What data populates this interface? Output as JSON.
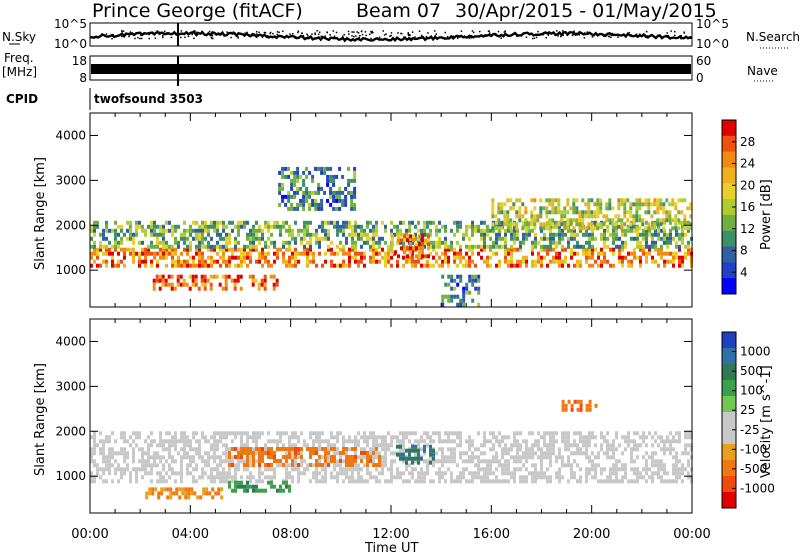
{
  "header": {
    "station": "Prince George (fitACF)",
    "beam": "Beam 07",
    "dates": "30/Apr/2015 - 01/May/2015"
  },
  "strips": {
    "nsky_label": "N.Sky",
    "nsearch_label": "N.Search",
    "nsky_ticks": [
      "10^5",
      "10^0"
    ],
    "nsearch_ticks": [
      "10^5",
      "10^0"
    ],
    "freq_label_1": "Freq.",
    "freq_label_2": "[MHz]",
    "freq_ticks": [
      "18",
      "8"
    ],
    "nave_label": "Nave",
    "nave_ticks": [
      "60",
      "0"
    ],
    "cpid_label": "CPID",
    "cpid_value": "twofsound 3503"
  },
  "colorbars": {
    "power": {
      "label": "Power [dB]",
      "ticks": [
        "28",
        "24",
        "20",
        "16",
        "12",
        "8",
        "4"
      ],
      "colors": [
        "#e00000",
        "#f05010",
        "#f08a10",
        "#f0b020",
        "#e8d028",
        "#b0cc30",
        "#70b040",
        "#3c9068",
        "#3060a0",
        "#2040c8",
        "#0000ff"
      ]
    },
    "velocity": {
      "label": "Velocity [m s^-1]",
      "ticks": [
        "1000",
        "500",
        "100",
        "25",
        "-25",
        "-100",
        "-500",
        "-1000"
      ],
      "colors": [
        "#2040c0",
        "#3070a8",
        "#2f7a55",
        "#3aa04a",
        "#70c850",
        "#c8c8c8",
        "#c8c8c8",
        "#e8a020",
        "#f07810",
        "#f04a10",
        "#e00000"
      ]
    }
  },
  "chart_data": [
    {
      "type": "scatter",
      "title": "Power",
      "xlabel": "Time UT",
      "ylabel": "Slant Range [km]",
      "x_ticks": [
        "00:00",
        "04:00",
        "08:00",
        "12:00",
        "16:00",
        "20:00",
        "00:00"
      ],
      "y_ticks": [
        "1000",
        "2000",
        "3000",
        "4000"
      ],
      "xlim": [
        "00:00",
        "24:00"
      ],
      "ylim": [
        180,
        4500
      ],
      "echo_regions": [
        {
          "t0": 0.0,
          "t1": 24.0,
          "r0": 1100,
          "r1": 1500,
          "value": 24
        },
        {
          "t0": 0.0,
          "t1": 24.0,
          "r0": 1500,
          "r1": 2100,
          "value": 12
        },
        {
          "t0": 2.5,
          "t1": 7.5,
          "r0": 550,
          "r1": 900,
          "value": 26
        },
        {
          "t0": 7.5,
          "t1": 10.5,
          "r0": 2400,
          "r1": 3300,
          "value": 8
        },
        {
          "t0": 12.0,
          "t1": 13.5,
          "r0": 1300,
          "r1": 1800,
          "value": 24
        },
        {
          "t0": 16.0,
          "t1": 24.0,
          "r0": 1900,
          "r1": 2600,
          "value": 16
        },
        {
          "t0": 14.0,
          "t1": 15.5,
          "r0": 200,
          "r1": 900,
          "value": 8
        }
      ]
    },
    {
      "type": "scatter",
      "title": "Velocity",
      "xlabel": "Time UT",
      "ylabel": "Slant Range [km]",
      "x_ticks": [
        "00:00",
        "04:00",
        "08:00",
        "12:00",
        "16:00",
        "20:00",
        "00:00"
      ],
      "y_ticks": [
        "1000",
        "2000",
        "3000",
        "4000"
      ],
      "xlim": [
        "00:00",
        "24:00"
      ],
      "ylim": [
        180,
        4500
      ],
      "echo_regions": [
        {
          "t0": 0.0,
          "t1": 24.0,
          "r0": 900,
          "r1": 2000,
          "value": 0
        },
        {
          "t0": 5.5,
          "t1": 11.5,
          "r0": 1250,
          "r1": 1650,
          "value": -300
        },
        {
          "t0": 2.2,
          "t1": 5.2,
          "r0": 550,
          "r1": 750,
          "value": -200
        },
        {
          "t0": 5.5,
          "t1": 8.0,
          "r0": 650,
          "r1": 900,
          "value": 150
        },
        {
          "t0": 12.2,
          "t1": 13.8,
          "r0": 1300,
          "r1": 1700,
          "value": 400
        },
        {
          "t0": 18.8,
          "t1": 20.2,
          "r0": 2450,
          "r1": 2700,
          "value": -300
        }
      ]
    }
  ]
}
